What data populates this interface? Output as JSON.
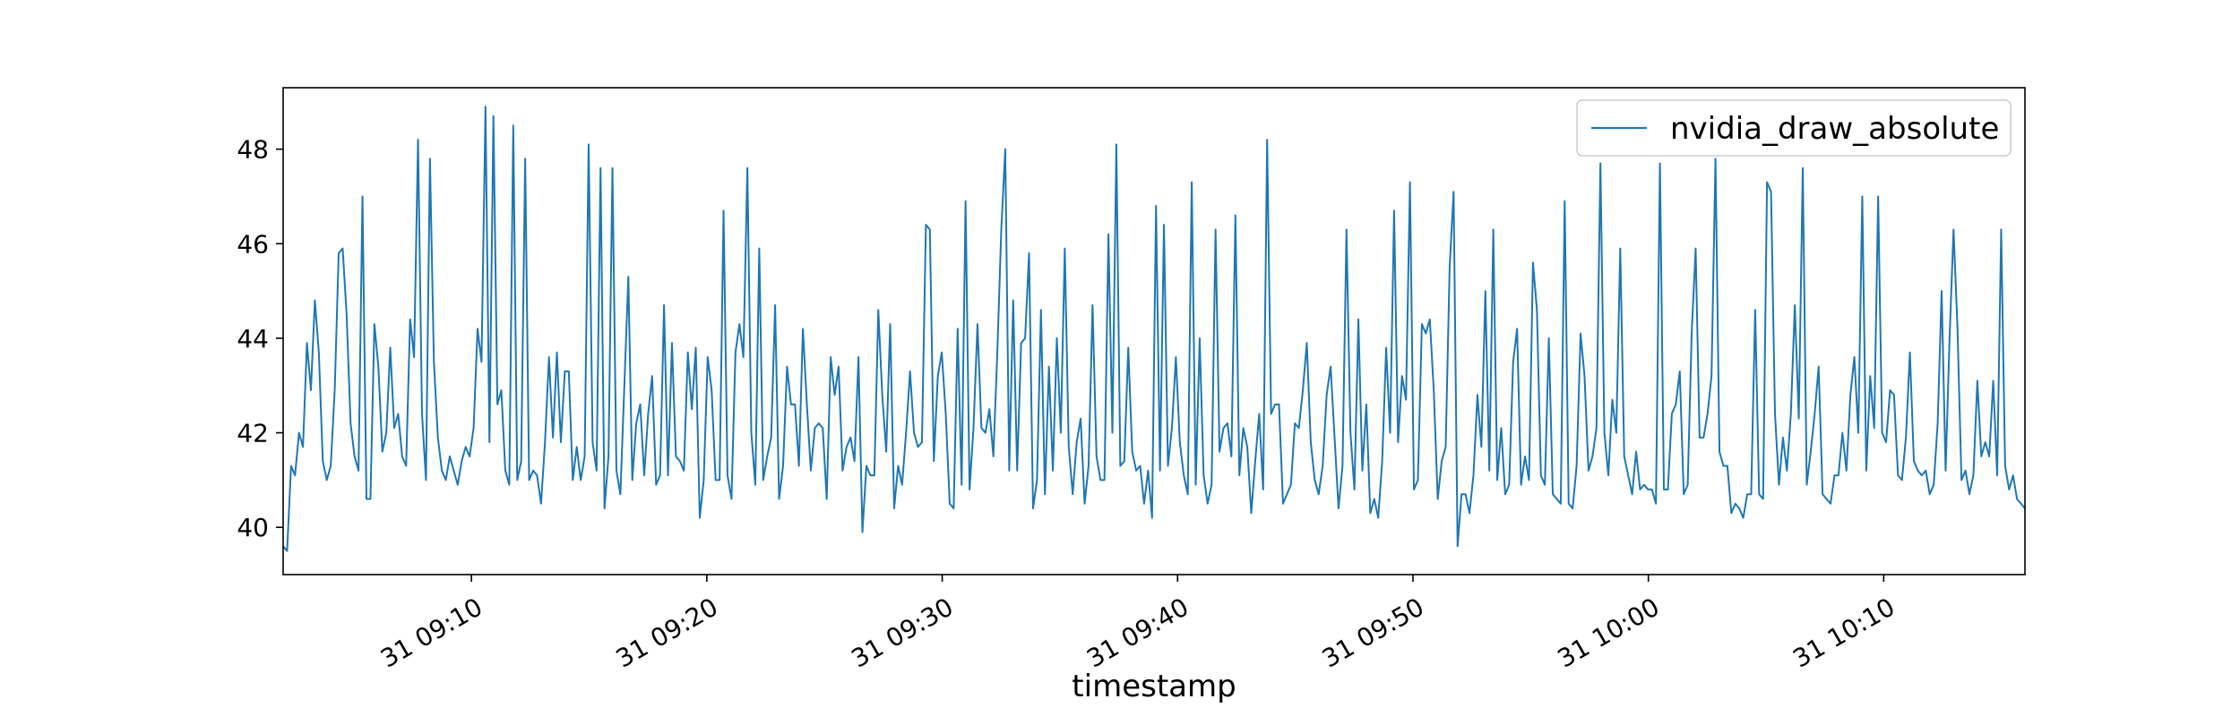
{
  "chart_data": {
    "type": "line",
    "title": "",
    "xlabel": "timestamp",
    "ylabel": "",
    "x_start": "09:02:00",
    "x_end": "10:16:00",
    "xlim": [
      "09:02",
      "10:16"
    ],
    "ylim": [
      39.0,
      49.3
    ],
    "x_ticks": [
      {
        "time": "09:10",
        "label": "31 09:10"
      },
      {
        "time": "09:20",
        "label": "31 09:20"
      },
      {
        "time": "09:30",
        "label": "31 09:30"
      },
      {
        "time": "09:40",
        "label": "31 09:40"
      },
      {
        "time": "09:50",
        "label": "31 09:50"
      },
      {
        "time": "10:00",
        "label": "31 10:00"
      },
      {
        "time": "10:10",
        "label": "31 10:10"
      }
    ],
    "y_ticks": [
      {
        "value": 40,
        "label": "40"
      },
      {
        "value": 42,
        "label": "42"
      },
      {
        "value": 44,
        "label": "44"
      },
      {
        "value": 46,
        "label": "46"
      },
      {
        "value": 48,
        "label": "48"
      }
    ],
    "grid": false,
    "legend_position": "top-right",
    "series": [
      {
        "name": "nvidia_draw_absolute",
        "color": "#1f77b4",
        "values": [
          39.6,
          39.5,
          41.3,
          41.1,
          42.0,
          41.7,
          43.9,
          42.9,
          44.8,
          43.7,
          41.4,
          41.0,
          41.3,
          42.9,
          45.8,
          45.9,
          44.5,
          42.2,
          41.5,
          41.2,
          47.0,
          40.6,
          40.6,
          44.3,
          43.4,
          41.6,
          42.0,
          43.8,
          42.1,
          42.4,
          41.5,
          41.3,
          44.4,
          43.6,
          48.2,
          42.4,
          41.0,
          47.8,
          43.5,
          41.9,
          41.2,
          41.0,
          41.5,
          41.2,
          40.9,
          41.4,
          41.7,
          41.5,
          42.1,
          44.2,
          43.5,
          48.9,
          41.8,
          48.7,
          42.6,
          42.9,
          41.2,
          40.9,
          48.5,
          41.0,
          41.4,
          47.8,
          41.0,
          41.2,
          41.1,
          40.5,
          41.8,
          43.6,
          41.9,
          43.7,
          41.8,
          43.3,
          43.3,
          41.0,
          41.7,
          41.0,
          41.5,
          48.1,
          41.8,
          41.2,
          47.6,
          40.4,
          41.5,
          47.6,
          41.2,
          40.7,
          43.0,
          45.3,
          41.0,
          42.2,
          42.6,
          41.1,
          42.4,
          43.2,
          40.9,
          41.1,
          44.7,
          41.1,
          43.9,
          41.5,
          41.4,
          41.2,
          43.7,
          42.5,
          43.8,
          40.2,
          41.0,
          43.6,
          42.9,
          41.0,
          41.0,
          46.7,
          41.1,
          40.6,
          43.7,
          44.3,
          43.6,
          47.6,
          42.0,
          40.9,
          45.9,
          41.0,
          41.5,
          41.9,
          44.7,
          40.6,
          41.3,
          43.4,
          42.6,
          42.6,
          41.3,
          44.2,
          42.6,
          41.2,
          42.1,
          42.2,
          42.1,
          40.6,
          43.6,
          42.8,
          43.4,
          41.2,
          41.7,
          41.9,
          41.4,
          43.6,
          39.9,
          41.3,
          41.1,
          41.1,
          44.6,
          42.8,
          41.6,
          44.3,
          40.4,
          41.3,
          40.9,
          42.0,
          43.3,
          42.0,
          41.7,
          41.8,
          46.4,
          46.3,
          41.4,
          43.2,
          43.7,
          42.4,
          40.5,
          40.4,
          44.2,
          40.9,
          46.9,
          40.8,
          42.1,
          44.3,
          42.1,
          42.0,
          42.5,
          41.5,
          43.7,
          46.3,
          48.0,
          41.2,
          44.8,
          41.2,
          43.9,
          44.0,
          45.8,
          40.4,
          41.0,
          44.6,
          40.7,
          43.4,
          41.2,
          44.0,
          42.0,
          45.9,
          41.7,
          40.7,
          41.8,
          42.3,
          40.5,
          41.3,
          44.7,
          41.5,
          41.0,
          41.0,
          46.2,
          42.0,
          48.1,
          41.3,
          41.4,
          43.8,
          41.6,
          41.2,
          41.3,
          40.5,
          41.2,
          40.2,
          46.8,
          41.2,
          46.4,
          41.3,
          42.1,
          43.6,
          41.8,
          41.1,
          40.7,
          47.3,
          40.9,
          44.0,
          41.1,
          40.5,
          40.9,
          46.3,
          41.6,
          42.1,
          42.2,
          41.5,
          46.6,
          41.1,
          42.1,
          41.7,
          40.3,
          41.4,
          42.4,
          40.8,
          48.2,
          42.4,
          42.6,
          42.6,
          40.5,
          40.7,
          40.9,
          42.2,
          42.1,
          42.9,
          43.9,
          41.8,
          41.0,
          40.7,
          41.3,
          42.8,
          43.4,
          41.9,
          40.4,
          41.3,
          46.3,
          42.0,
          40.8,
          44.4,
          41.2,
          42.6,
          40.3,
          40.6,
          40.2,
          41.4,
          43.8,
          42.0,
          46.7,
          41.8,
          43.2,
          42.7,
          47.3,
          40.8,
          41.0,
          44.3,
          44.1,
          44.4,
          42.9,
          40.6,
          41.4,
          41.7,
          45.5,
          47.1,
          39.6,
          40.7,
          40.7,
          40.3,
          41.1,
          42.8,
          41.7,
          45.0,
          41.2,
          46.3,
          41.0,
          42.1,
          40.7,
          40.9,
          43.5,
          44.2,
          40.9,
          41.5,
          41.0,
          45.6,
          44.6,
          41.1,
          40.9,
          44.0,
          40.7,
          40.6,
          40.5,
          46.9,
          40.5,
          40.4,
          41.3,
          44.1,
          43.2,
          41.2,
          41.5,
          42.1,
          47.7,
          42.0,
          41.1,
          42.7,
          42.0,
          45.9,
          41.5,
          41.1,
          40.7,
          41.6,
          40.8,
          40.9,
          40.8,
          40.8,
          40.5,
          47.7,
          40.8,
          40.8,
          42.4,
          42.6,
          43.3,
          40.7,
          40.9,
          44.1,
          45.9,
          41.9,
          41.9,
          42.4,
          43.2,
          47.8,
          41.6,
          41.3,
          41.3,
          40.3,
          40.5,
          40.4,
          40.2,
          40.7,
          40.7,
          44.6,
          40.7,
          40.6,
          47.3,
          47.1,
          42.4,
          40.9,
          41.9,
          41.2,
          42.4,
          44.7,
          42.3,
          47.6,
          40.9,
          41.6,
          42.4,
          43.4,
          40.7,
          40.6,
          40.5,
          41.1,
          41.1,
          42.0,
          41.2,
          42.8,
          43.6,
          42.0,
          47.0,
          41.2,
          43.2,
          42.1,
          47.0,
          42.0,
          41.8,
          42.9,
          42.8,
          41.1,
          41.0,
          41.9,
          43.7,
          41.4,
          41.2,
          41.1,
          41.2,
          40.7,
          40.9,
          42.2,
          45.0,
          41.2,
          44.0,
          46.3,
          44.2,
          41.0,
          41.2,
          40.7,
          41.1,
          43.1,
          41.5,
          41.8,
          41.5,
          43.1,
          41.1,
          46.3,
          41.3,
          40.8,
          41.1,
          40.6,
          40.5,
          40.4
        ]
      }
    ]
  }
}
